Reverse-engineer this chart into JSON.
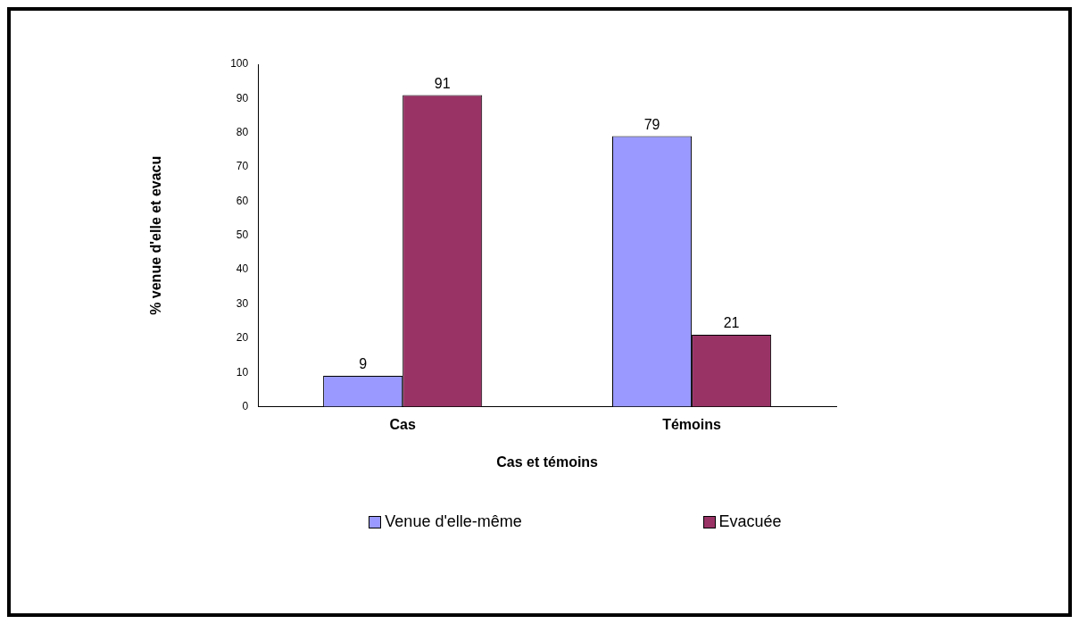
{
  "chart_data": {
    "type": "bar",
    "xlabel": "Cas et témoins",
    "ylabel": "% venue d'elle et evacu",
    "categories": [
      "Cas",
      "Témoins"
    ],
    "series": [
      {
        "name": "Venue d'elle-même",
        "color": "#9999ff",
        "values": [
          9,
          79
        ]
      },
      {
        "name": "Evacuée",
        "color": "#993366",
        "values": [
          91,
          21
        ]
      }
    ],
    "ylim": [
      0,
      100
    ],
    "yticks": [
      0,
      10,
      20,
      30,
      40,
      50,
      60,
      70,
      80,
      90,
      100
    ],
    "grid": false,
    "legend": "bottom",
    "data_labels": true
  }
}
